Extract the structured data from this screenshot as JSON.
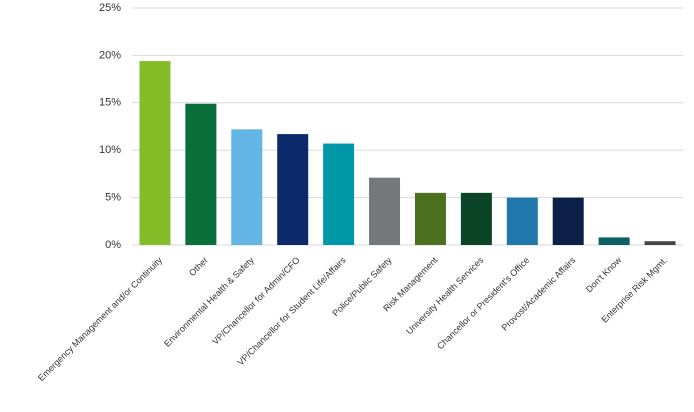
{
  "chart_data": {
    "type": "bar",
    "categories": [
      "Emergency Management and/or Continuity",
      "Other",
      "Environmental Health & Safety",
      "VP/Chancellor for Admin/CFO",
      "VP/Chancellor for Student Life/Affairs",
      "Police/Public Safety",
      "Risk Management",
      "University Health Services",
      "Chancellor or President's Office",
      "Provost/Academic Affairs",
      "Don't Know",
      "Enterprise Risk Mgmt."
    ],
    "values": [
      19.4,
      14.9,
      12.2,
      11.7,
      10.7,
      7.1,
      5.5,
      5.5,
      5.0,
      5.0,
      0.8,
      0.4
    ],
    "colors": [
      "#84bd28",
      "#0a6e38",
      "#62b5e5",
      "#0c2a6b",
      "#0097a9",
      "#75787b",
      "#4a7020",
      "#0b4427",
      "#1f77ac",
      "#0c1f48",
      "#0b6063",
      "#454545"
    ],
    "ylim": [
      0,
      25
    ],
    "yticks": [
      {
        "value": 0,
        "label": "0%"
      },
      {
        "value": 5,
        "label": "5%"
      },
      {
        "value": 10,
        "label": "10%"
      },
      {
        "value": 15,
        "label": "15%"
      },
      {
        "value": 20,
        "label": "20%"
      },
      {
        "value": 25,
        "label": "25%"
      }
    ],
    "grid": true
  }
}
